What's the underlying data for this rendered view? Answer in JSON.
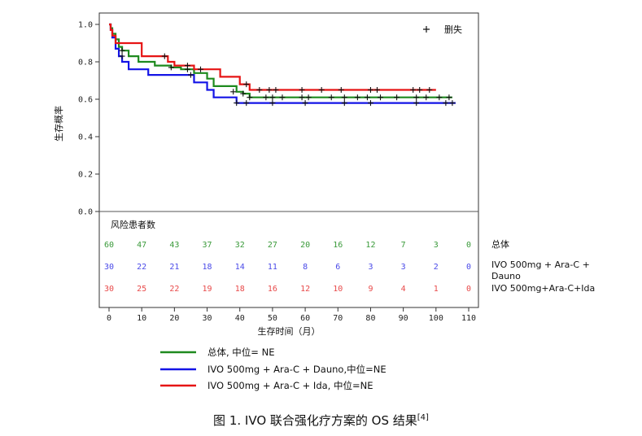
{
  "chart_data": {
    "type": "line",
    "title": "",
    "xlabel": "生存时间（月）",
    "ylabel": "生存概率",
    "xlim": [
      0,
      110
    ],
    "ylim": [
      0.0,
      1.0
    ],
    "x_ticks": [
      "0",
      "10",
      "20",
      "30",
      "40",
      "50",
      "60",
      "70",
      "80",
      "90",
      "100",
      "110"
    ],
    "y_ticks": [
      "0.0",
      "0.2",
      "0.4",
      "0.6",
      "0.8",
      "1.0"
    ],
    "censor_legend": "删失",
    "series": [
      {
        "name": "总体, 中位= NE",
        "color": "#1e8a1e",
        "steps": [
          [
            0,
            1.0
          ],
          [
            0.5,
            0.98
          ],
          [
            1,
            0.95
          ],
          [
            2,
            0.92
          ],
          [
            3,
            0.88
          ],
          [
            4,
            0.86
          ],
          [
            6,
            0.83
          ],
          [
            9,
            0.8
          ],
          [
            14,
            0.78
          ],
          [
            19,
            0.77
          ],
          [
            22,
            0.76
          ],
          [
            26,
            0.74
          ],
          [
            30,
            0.71
          ],
          [
            32,
            0.67
          ],
          [
            39,
            0.64
          ],
          [
            41,
            0.63
          ],
          [
            43,
            0.61
          ],
          [
            105,
            0.61
          ]
        ],
        "censored": [
          [
            4,
            0.86
          ],
          [
            19,
            0.77
          ],
          [
            24,
            0.76
          ],
          [
            38,
            0.64
          ],
          [
            41,
            0.63
          ],
          [
            43,
            0.61
          ],
          [
            48,
            0.61
          ],
          [
            50,
            0.61
          ],
          [
            53,
            0.61
          ],
          [
            59,
            0.61
          ],
          [
            61,
            0.61
          ],
          [
            68,
            0.61
          ],
          [
            72,
            0.61
          ],
          [
            76,
            0.61
          ],
          [
            79,
            0.61
          ],
          [
            83,
            0.61
          ],
          [
            88,
            0.61
          ],
          [
            94,
            0.61
          ],
          [
            97,
            0.61
          ],
          [
            101,
            0.61
          ],
          [
            104,
            0.61
          ]
        ]
      },
      {
        "name": "IVO 500mg + Ara-C + Dauno,中位=NE",
        "color": "#1414e6",
        "steps": [
          [
            0,
            1.0
          ],
          [
            0.5,
            0.97
          ],
          [
            1,
            0.93
          ],
          [
            2,
            0.87
          ],
          [
            3,
            0.83
          ],
          [
            4,
            0.8
          ],
          [
            6,
            0.76
          ],
          [
            12,
            0.73
          ],
          [
            26,
            0.69
          ],
          [
            30,
            0.65
          ],
          [
            32,
            0.61
          ],
          [
            39,
            0.58
          ],
          [
            106,
            0.58
          ]
        ],
        "censored": [
          [
            4,
            0.83
          ],
          [
            25,
            0.73
          ],
          [
            39,
            0.58
          ],
          [
            42,
            0.58
          ],
          [
            50,
            0.58
          ],
          [
            60,
            0.58
          ],
          [
            72,
            0.58
          ],
          [
            80,
            0.58
          ],
          [
            94,
            0.58
          ],
          [
            103,
            0.58
          ],
          [
            105,
            0.58
          ]
        ]
      },
      {
        "name": "IVO 500mg + Ara-C + Ida, 中位=NE",
        "color": "#e61414",
        "steps": [
          [
            0,
            1.0
          ],
          [
            0.5,
            0.97
          ],
          [
            1,
            0.94
          ],
          [
            2,
            0.9
          ],
          [
            10,
            0.83
          ],
          [
            18,
            0.8
          ],
          [
            20,
            0.78
          ],
          [
            26,
            0.76
          ],
          [
            34,
            0.72
          ],
          [
            40,
            0.68
          ],
          [
            43,
            0.65
          ],
          [
            100,
            0.65
          ]
        ],
        "censored": [
          [
            17,
            0.83
          ],
          [
            24,
            0.78
          ],
          [
            28,
            0.76
          ],
          [
            42,
            0.68
          ],
          [
            46,
            0.65
          ],
          [
            49,
            0.65
          ],
          [
            51,
            0.65
          ],
          [
            59,
            0.65
          ],
          [
            65,
            0.65
          ],
          [
            71,
            0.65
          ],
          [
            80,
            0.65
          ],
          [
            82,
            0.65
          ],
          [
            93,
            0.65
          ],
          [
            95,
            0.65
          ],
          [
            98,
            0.65
          ]
        ]
      }
    ],
    "risk_table": {
      "title": "风险患者数",
      "times": [
        0,
        10,
        20,
        30,
        40,
        50,
        60,
        70,
        80,
        90,
        100,
        110
      ],
      "rows": [
        {
          "label": "总体",
          "color": "#3a9a3a",
          "counts": [
            "60",
            "47",
            "43",
            "37",
            "32",
            "27",
            "20",
            "16",
            "12",
            "7",
            "3",
            "0"
          ]
        },
        {
          "label_lines": [
            "IVO 500mg + Ara-C +",
            "Dauno"
          ],
          "color": "#4a4ae8",
          "counts": [
            "30",
            "22",
            "21",
            "18",
            "14",
            "11",
            "8",
            "6",
            "3",
            "3",
            "2",
            "0"
          ]
        },
        {
          "label": "IVO 500mg+Ara-C+Ida",
          "color": "#e84a4a",
          "counts": [
            "30",
            "25",
            "22",
            "19",
            "18",
            "16",
            "12",
            "10",
            "9",
            "4",
            "1",
            "0"
          ]
        }
      ]
    }
  },
  "caption": {
    "text": "图 1. IVO 联合强化疗方案的 OS 结果",
    "sup": "[4]"
  }
}
